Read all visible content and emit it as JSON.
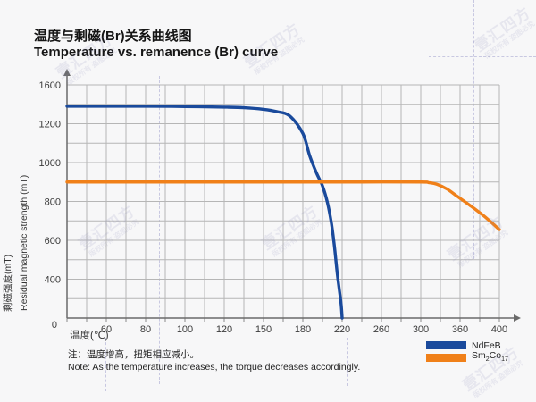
{
  "header": {
    "title_zh": "温度与剩磁(Br)关系曲线图",
    "title_en": "Temperature vs. remanence (Br) curve"
  },
  "chart_data": {
    "type": "line",
    "xlabel": "温度(℃)",
    "ylabel_zh": "剩磁强度(mT)",
    "ylabel_en": "Residual magnetic strength (mT)",
    "x_ticks": [
      0,
      60,
      80,
      100,
      120,
      150,
      180,
      220,
      260,
      300,
      360,
      400
    ],
    "y_ticks": [
      1600,
      1200,
      1000,
      800,
      600,
      400,
      0
    ],
    "origin_label": "0",
    "grid": "major+minor, gray, on",
    "legend_position": "bottom-right",
    "axis_color": "#6a6a6a",
    "grid_color": "#b6b6b6",
    "series": [
      {
        "name": "NdFeB",
        "color": "#1a4a9c",
        "points": [
          [
            0,
            1380
          ],
          [
            40,
            1380
          ],
          [
            80,
            1380
          ],
          [
            100,
            1377
          ],
          [
            120,
            1371
          ],
          [
            135,
            1365
          ],
          [
            150,
            1348
          ],
          [
            160,
            1325
          ],
          [
            170,
            1280
          ],
          [
            180,
            1150
          ],
          [
            187,
            1035
          ],
          [
            194,
            945
          ],
          [
            200,
            880
          ],
          [
            205,
            795
          ],
          [
            209,
            690
          ],
          [
            212,
            575
          ],
          [
            215,
            430
          ],
          [
            217,
            300
          ],
          [
            219,
            140
          ],
          [
            220,
            0
          ]
        ]
      },
      {
        "name": "Sm2Co17",
        "color": "#f08019",
        "points": [
          [
            0,
            900
          ],
          [
            60,
            900
          ],
          [
            120,
            900
          ],
          [
            180,
            900
          ],
          [
            240,
            900
          ],
          [
            300,
            900
          ],
          [
            312,
            897
          ],
          [
            325,
            888
          ],
          [
            340,
            864
          ],
          [
            355,
            828
          ],
          [
            370,
            780
          ],
          [
            385,
            722
          ],
          [
            400,
            655
          ]
        ]
      }
    ]
  },
  "legend": {
    "ndfeb_label": "NdFeB",
    "sm": {
      "base1": "Sm",
      "sub1": "2",
      "base2": "Co",
      "sub2": "17"
    }
  },
  "note": {
    "line1": "注：温度增高，扭矩相应减小。",
    "line2": "Note: As the temperature increases, the torque decreases accordingly."
  },
  "watermark": {
    "text": "壹汇四方",
    "subtext": "版权所有 盗图必究"
  }
}
